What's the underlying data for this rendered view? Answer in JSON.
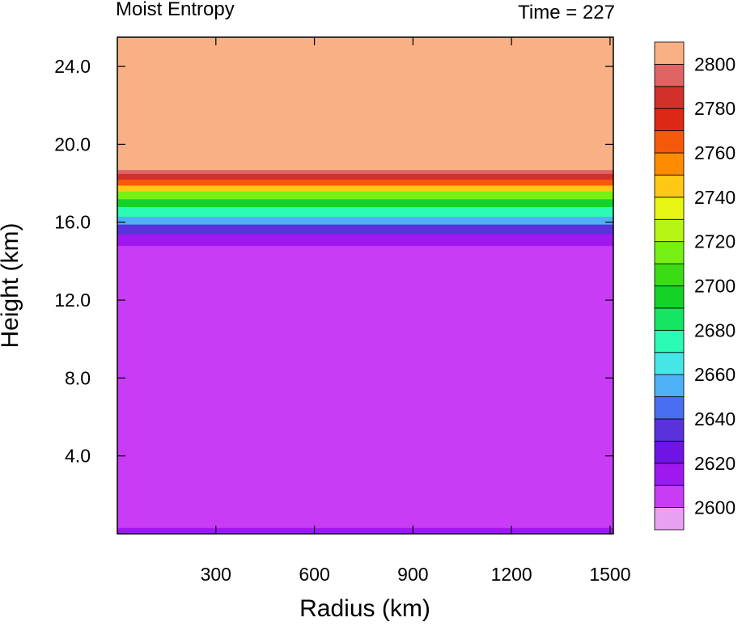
{
  "chart_data": {
    "type": "heatmap",
    "title": "Moist Entropy",
    "subtitle": "Time = 227",
    "xlabel": "Radius (km)",
    "ylabel": "Height (km)",
    "xlim": [
      0,
      1510
    ],
    "ylim": [
      0,
      25.5
    ],
    "xticks": [
      "300",
      "600",
      "900",
      "1200",
      "1500"
    ],
    "xtick_values": [
      300,
      600,
      900,
      1200,
      1500
    ],
    "yticks": [
      "4.0",
      "8.0",
      "12.0",
      "16.0",
      "20.0",
      "24.0"
    ],
    "ytick_values": [
      4,
      8,
      12,
      16,
      20,
      24
    ],
    "colorbar": {
      "labels": [
        "2600",
        "2620",
        "2640",
        "2660",
        "2680",
        "2700",
        "2720",
        "2740",
        "2760",
        "2780",
        "2800"
      ],
      "levels": [
        2595,
        2600,
        2610,
        2620,
        2630,
        2640,
        2650,
        2660,
        2670,
        2680,
        2690,
        2700,
        2710,
        2720,
        2730,
        2740,
        2750,
        2760,
        2770,
        2780,
        2790,
        2800,
        2805
      ],
      "colors": [
        "#e8a0f0",
        "#c83cf5",
        "#a018f0",
        "#7014e6",
        "#5a32dc",
        "#4a6ef0",
        "#4eb0f5",
        "#46e6e6",
        "#2afab4",
        "#14e664",
        "#14d228",
        "#3cdc14",
        "#78f014",
        "#b4f514",
        "#e6f514",
        "#ffc814",
        "#ff8c00",
        "#f55a0a",
        "#dc2814",
        "#d2302a",
        "#e06464",
        "#f8b084"
      ]
    },
    "profile": [
      {
        "height": 0.2,
        "value": 2605
      },
      {
        "height": 14.8,
        "value": 2605
      },
      {
        "height": 15.4,
        "value": 2615
      },
      {
        "height": 15.9,
        "value": 2630
      },
      {
        "height": 16.3,
        "value": 2650
      },
      {
        "height": 16.8,
        "value": 2670
      },
      {
        "height": 17.2,
        "value": 2690
      },
      {
        "height": 17.6,
        "value": 2715
      },
      {
        "height": 17.9,
        "value": 2740
      },
      {
        "height": 18.2,
        "value": 2765
      },
      {
        "height": 18.5,
        "value": 2785
      },
      {
        "height": 18.7,
        "value": 2795
      },
      {
        "height": 25.5,
        "value": 2805
      }
    ],
    "grid": false,
    "legend": "right colorbar"
  }
}
